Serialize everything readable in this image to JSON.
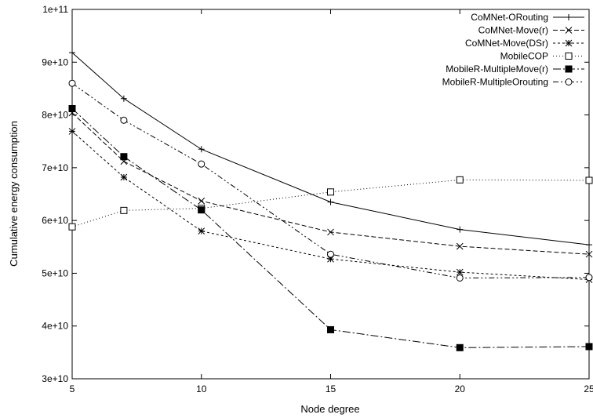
{
  "chart_data": {
    "type": "line",
    "title": "",
    "xlabel": "Node degree",
    "ylabel": "Cumulative energy consumption",
    "xlim": [
      5,
      25
    ],
    "ylim": [
      30000000000,
      100000000000
    ],
    "x": [
      5,
      7,
      10,
      15,
      20,
      25
    ],
    "x_ticks": [
      5,
      10,
      15,
      20,
      25
    ],
    "y_ticks": [
      30000000000,
      40000000000,
      50000000000,
      60000000000,
      70000000000,
      80000000000,
      90000000000,
      100000000000
    ],
    "x_tick_labels": [
      "5",
      "10",
      "15",
      "20",
      "25"
    ],
    "y_tick_labels": [
      "3e+10",
      "4e+10",
      "5e+10",
      "6e+10",
      "7e+10",
      "8e+10",
      "9e+10",
      "1e+11"
    ],
    "grid": false,
    "legend_position": "top-right",
    "series": [
      {
        "name": "CoMNet-ORouting",
        "marker": "plus",
        "dash": "solid",
        "values": [
          91800000000,
          83100000000,
          73500000000,
          63500000000,
          58300000000,
          55400000000
        ]
      },
      {
        "name": "CoMNet-Move(r)",
        "marker": "cross",
        "dash": "dashed",
        "values": [
          80400000000,
          71200000000,
          63700000000,
          57800000000,
          55100000000,
          53600000000
        ]
      },
      {
        "name": "CoMNet-Move(DSr)",
        "marker": "star",
        "dash": "dotted",
        "values": [
          76900000000,
          68200000000,
          58000000000,
          52700000000,
          50200000000,
          48800000000
        ]
      },
      {
        "name": "MobileCOP",
        "marker": "open-square",
        "dash": "fine-dotted",
        "values": [
          58800000000,
          61900000000,
          62300000000,
          65400000000,
          67700000000,
          67600000000
        ]
      },
      {
        "name": "MobileR-MultipleMove(r)",
        "marker": "filled-square",
        "dash": "dash-dot",
        "values": [
          81200000000,
          72100000000,
          62000000000,
          39300000000,
          35900000000,
          36100000000
        ]
      },
      {
        "name": "MobileR-MultipleOrouting",
        "marker": "open-circle",
        "dash": "dash-dot-dot",
        "values": [
          86000000000,
          79000000000,
          70700000000,
          53600000000,
          49100000000,
          49200000000
        ]
      }
    ]
  }
}
